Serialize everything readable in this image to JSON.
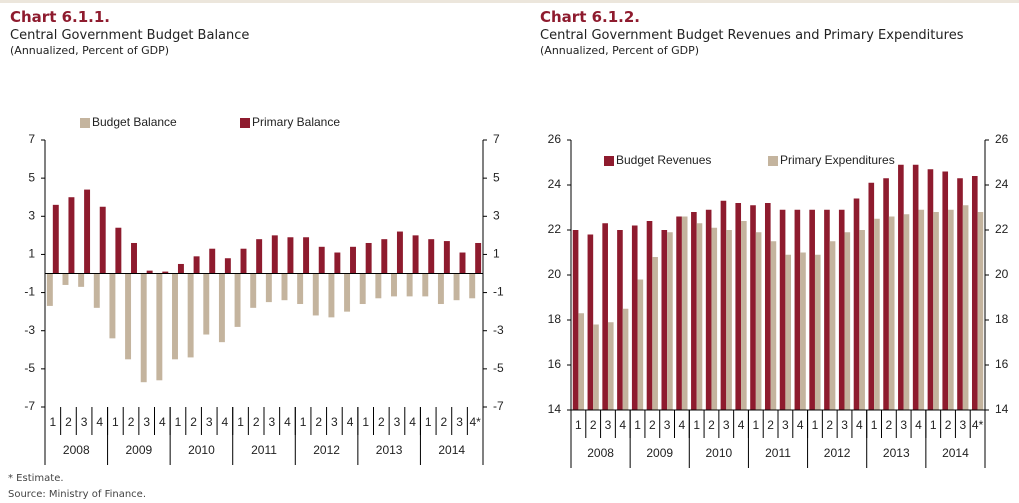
{
  "chart_data": [
    {
      "type": "bar",
      "title": "Chart 6.1.1.",
      "subtitle": "Central Government Budget Balance",
      "note": "(Annualized, Percent of GDP)",
      "categories": [
        "1",
        "2",
        "3",
        "4",
        "1",
        "2",
        "3",
        "4",
        "1",
        "2",
        "3",
        "4",
        "1",
        "2",
        "3",
        "4",
        "1",
        "2",
        "3",
        "4",
        "1",
        "2",
        "3",
        "4",
        "1",
        "2",
        "3",
        "4*"
      ],
      "groups": [
        "2008",
        "2009",
        "2010",
        "2011",
        "2012",
        "2013",
        "2014"
      ],
      "series": [
        {
          "name": "Budget Balance",
          "color": "#c4b49e",
          "values": [
            -1.7,
            -0.6,
            -0.7,
            -1.8,
            -3.4,
            -4.5,
            -5.7,
            -5.6,
            -4.5,
            -4.4,
            -3.2,
            -3.6,
            -2.8,
            -1.8,
            -1.5,
            -1.4,
            -1.6,
            -2.2,
            -2.3,
            -2.0,
            -1.6,
            -1.3,
            -1.2,
            -1.2,
            -1.2,
            -1.6,
            -1.4,
            -1.3
          ]
        },
        {
          "name": "Primary Balance",
          "color": "#8e1b2e",
          "values": [
            3.6,
            4.0,
            4.4,
            3.5,
            2.4,
            1.6,
            0.15,
            0.1,
            0.5,
            0.9,
            1.3,
            0.8,
            1.3,
            1.8,
            2.0,
            1.9,
            1.9,
            1.4,
            1.1,
            1.4,
            1.6,
            1.8,
            2.2,
            2.0,
            1.8,
            1.7,
            1.1,
            1.6
          ]
        }
      ],
      "ylim": [
        -7,
        7
      ],
      "yticks": [
        -7,
        -5,
        -3,
        -1,
        1,
        3,
        5,
        7
      ],
      "legend": "top"
    },
    {
      "type": "bar",
      "title": "Chart 6.1.2.",
      "subtitle": "Central Government Budget Revenues and Primary Expenditures",
      "note": "(Annualized, Percent of GDP)",
      "categories": [
        "1",
        "2",
        "3",
        "4",
        "1",
        "2",
        "3",
        "4",
        "1",
        "2",
        "3",
        "4",
        "1",
        "2",
        "3",
        "4",
        "1",
        "2",
        "3",
        "4",
        "1",
        "2",
        "3",
        "4",
        "1",
        "2",
        "3",
        "4*"
      ],
      "groups": [
        "2008",
        "2009",
        "2010",
        "2011",
        "2012",
        "2013",
        "2014"
      ],
      "series": [
        {
          "name": "Budget Revenues",
          "color": "#8e1b2e",
          "values": [
            22.0,
            21.8,
            22.3,
            22.0,
            22.2,
            22.4,
            22.0,
            22.6,
            22.8,
            22.9,
            23.3,
            23.2,
            23.1,
            23.2,
            22.9,
            22.9,
            22.9,
            22.9,
            22.9,
            23.4,
            24.1,
            24.3,
            24.9,
            24.9,
            24.7,
            24.6,
            24.3,
            24.4
          ]
        },
        {
          "name": "Primary Expenditures",
          "color": "#c4b49e",
          "values": [
            18.3,
            17.8,
            17.9,
            18.5,
            19.8,
            20.8,
            21.9,
            22.6,
            22.3,
            22.1,
            22.0,
            22.4,
            21.9,
            21.5,
            20.9,
            21.0,
            20.9,
            21.5,
            21.9,
            22.0,
            22.5,
            22.6,
            22.7,
            22.9,
            22.8,
            22.9,
            23.1,
            22.8
          ]
        }
      ],
      "ylim": [
        14,
        26
      ],
      "yticks": [
        14,
        16,
        18,
        20,
        22,
        24,
        26
      ],
      "legend": "upper center"
    }
  ],
  "footnotes": [
    "* Estimate.",
    "Source: Ministry of Finance."
  ]
}
